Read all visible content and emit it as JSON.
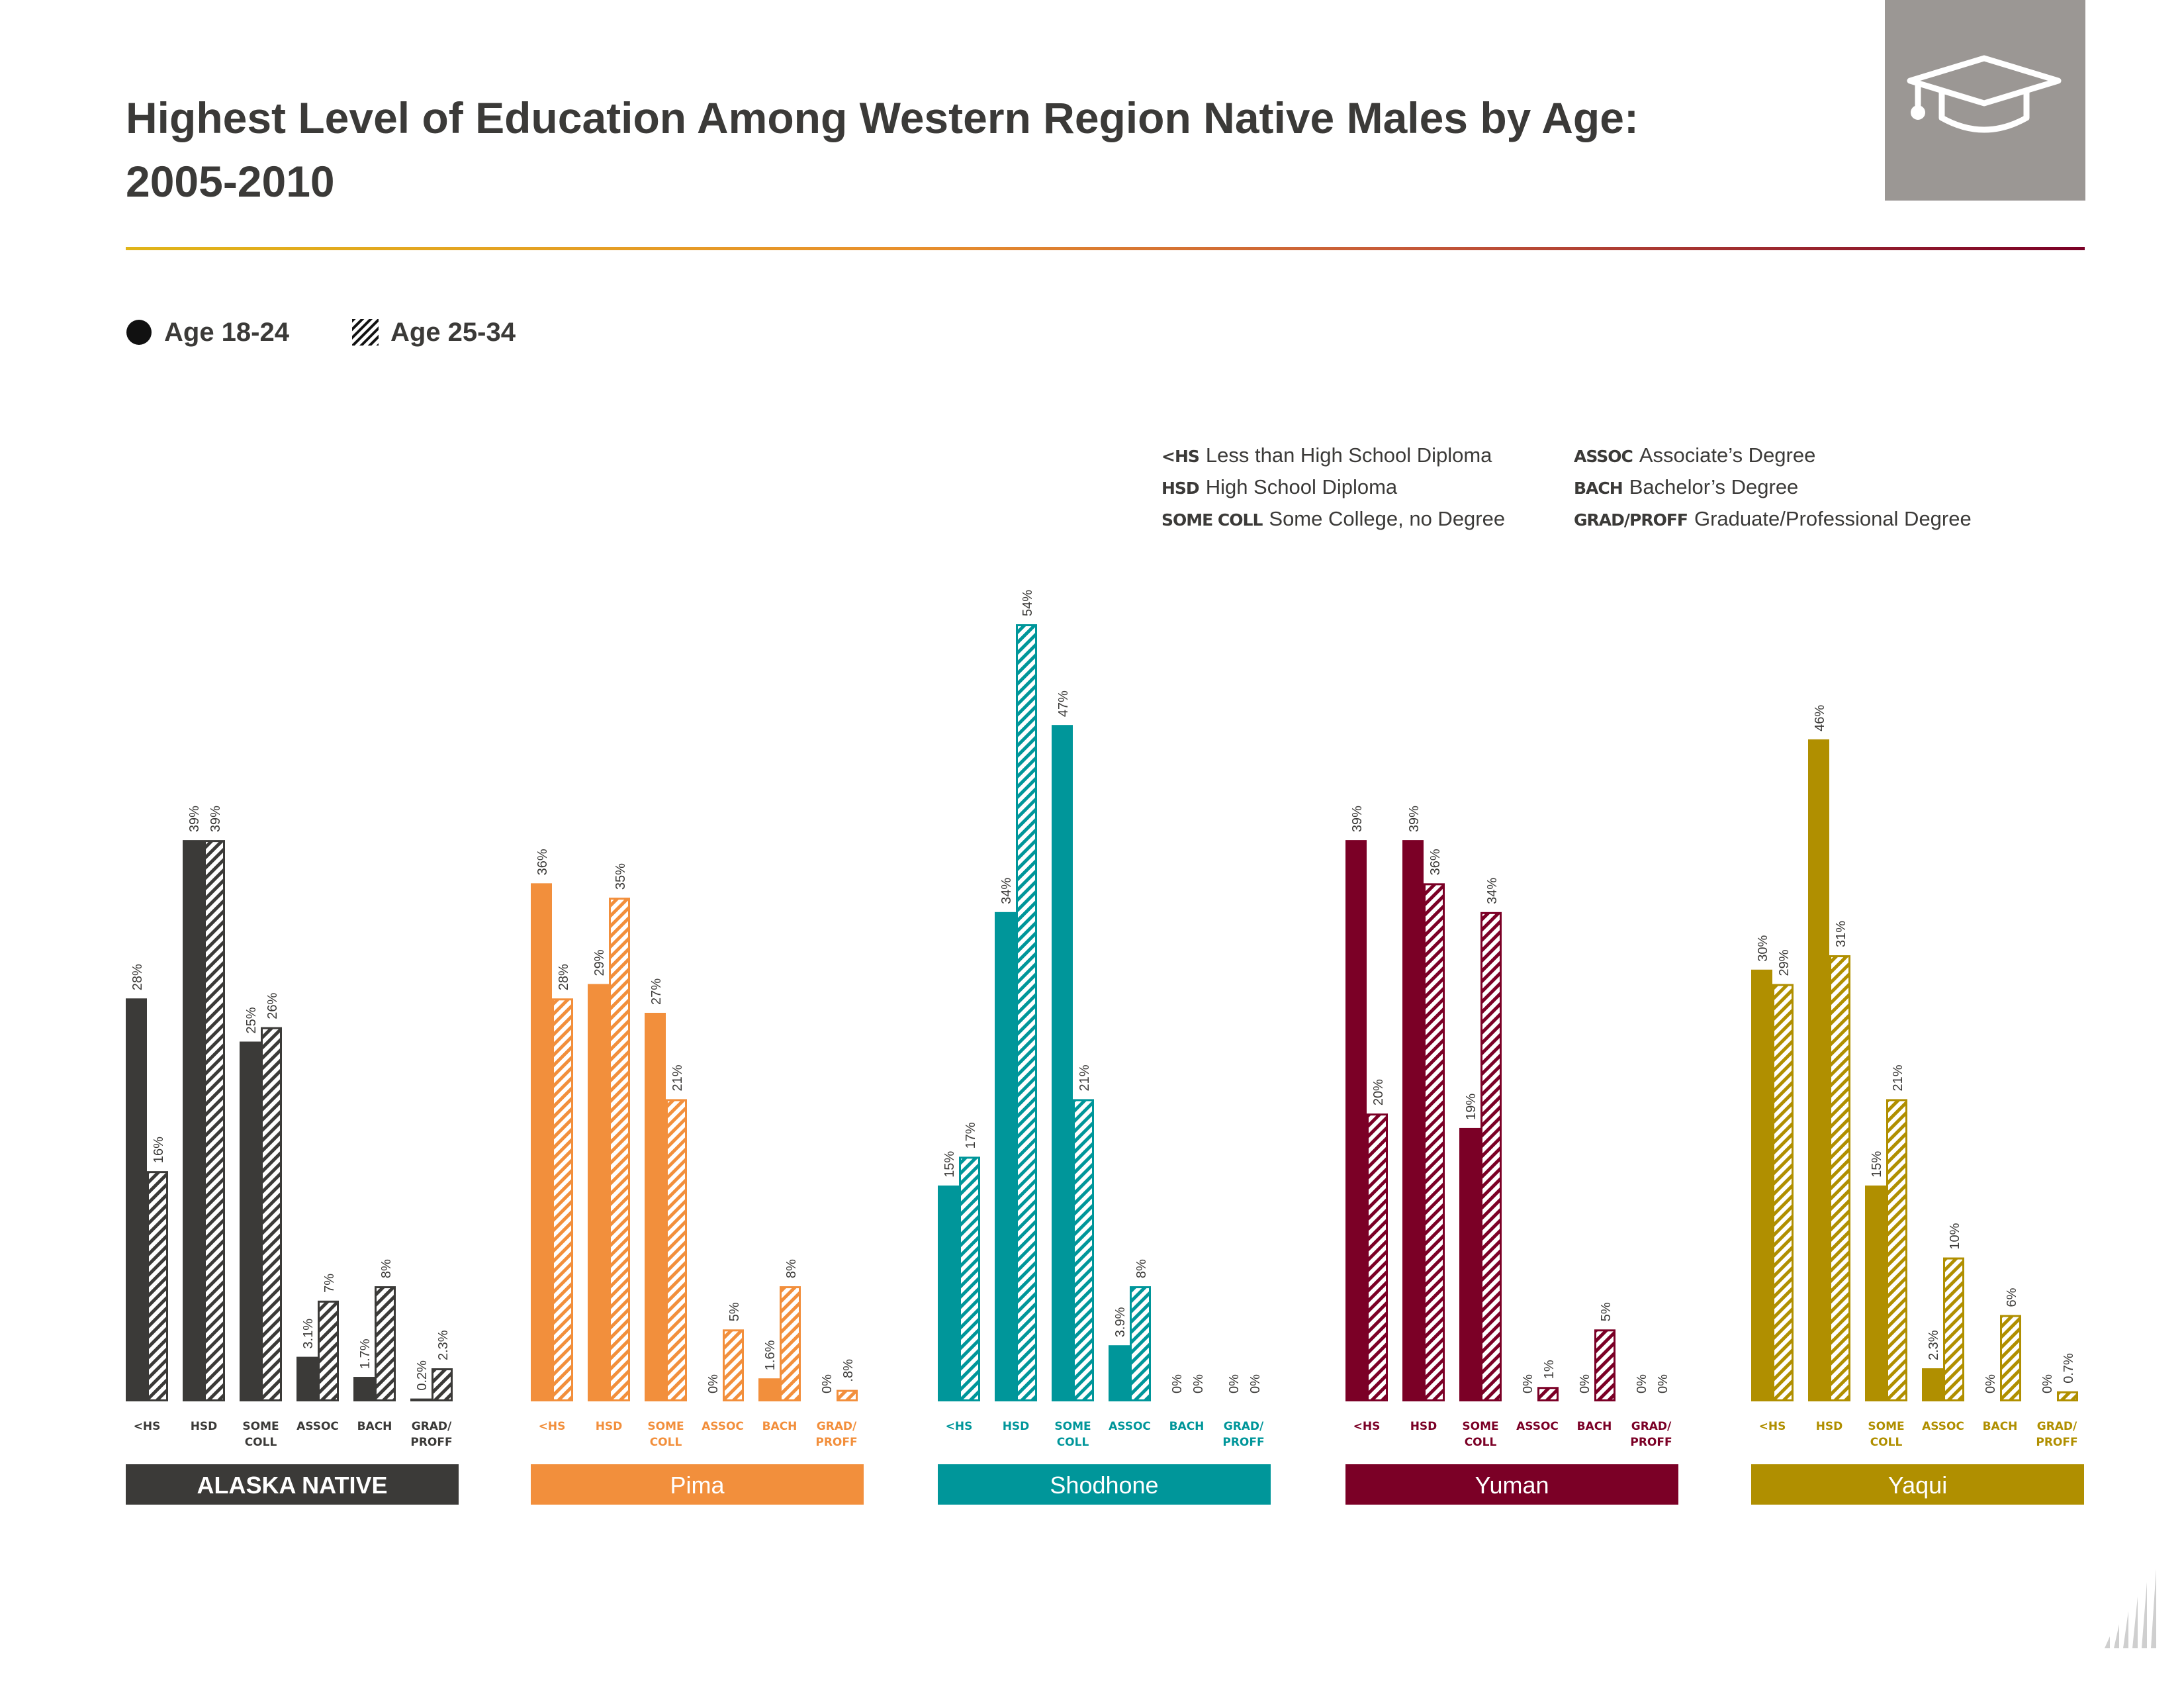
{
  "title_line1": "Highest Level of Education Among Western Region Native Males by Age:",
  "title_line2": "2005-2010",
  "header_icon": "graduation-cap-icon",
  "legend": [
    {
      "label": "Age 18-24",
      "style": "solid"
    },
    {
      "label": "Age 25-34",
      "style": "hatched"
    }
  ],
  "abbreviations": [
    {
      "abbr": "<HS",
      "meaning": "Less than High School Diploma"
    },
    {
      "abbr": "HSD",
      "meaning": "High School Diploma"
    },
    {
      "abbr": "SOME COLL",
      "meaning": "Some College, no Degree"
    },
    {
      "abbr": "ASSOC",
      "meaning": "Associate’s Degree"
    },
    {
      "abbr": "BACH",
      "meaning": "Bachelor’s Degree"
    },
    {
      "abbr": "GRAD/PROFF",
      "meaning": "Graduate/Professional Degree"
    }
  ],
  "chart_data": {
    "type": "bar",
    "categories": [
      "<HS",
      "HSD",
      "SOME COLL",
      "ASSOC",
      "BACH",
      "GRAD/ PROFF"
    ],
    "ylim": [
      0,
      54
    ],
    "groups": [
      {
        "name": "ALASKA NATIVE",
        "color": "#3b3a38",
        "series": [
          {
            "name": "Age 18-24",
            "values": [
              28,
              39,
              25,
              3.1,
              1.7,
              0.2
            ],
            "labels": [
              "28%",
              "39%",
              "25%",
              "3.1%",
              "1.7%",
              "0.2%"
            ]
          },
          {
            "name": "Age 25-34",
            "values": [
              16,
              39,
              26,
              7,
              8,
              2.3
            ],
            "labels": [
              "16%",
              "39%",
              "26%",
              "7%",
              "8%",
              "2.3%"
            ]
          }
        ]
      },
      {
        "name": "Pima",
        "color": "#f28f3c",
        "series": [
          {
            "name": "Age 18-24",
            "values": [
              36,
              29,
              27,
              0,
              1.6,
              0
            ],
            "labels": [
              "36%",
              "29%",
              "27%",
              "0%",
              "1.6%",
              "0%"
            ]
          },
          {
            "name": "Age 25-34",
            "values": [
              28,
              35,
              21,
              5,
              8,
              0.8
            ],
            "labels": [
              "28%",
              "35%",
              "21%",
              "5%",
              "8%",
              ".8%"
            ]
          }
        ]
      },
      {
        "name": "Shodhone",
        "color": "#00969a",
        "series": [
          {
            "name": "Age 18-24",
            "values": [
              15,
              34,
              47,
              3.9,
              0,
              0
            ],
            "labels": [
              "15%",
              "34%",
              "47%",
              "3.9%",
              "0%",
              "0%"
            ]
          },
          {
            "name": "Age 25-34",
            "values": [
              17,
              54,
              21,
              8,
              0,
              0
            ],
            "labels": [
              "17%",
              "54%",
              "21%",
              "8%",
              "0%",
              "0%"
            ]
          }
        ]
      },
      {
        "name": "Yuman",
        "color": "#7b0026",
        "series": [
          {
            "name": "Age 18-24",
            "values": [
              39,
              39,
              19,
              0,
              0,
              0
            ],
            "labels": [
              "39%",
              "39%",
              "19%",
              "0%",
              "0%",
              "0%"
            ]
          },
          {
            "name": "Age 25-34",
            "values": [
              20,
              36,
              34,
              1,
              5,
              0
            ],
            "labels": [
              "20%",
              "36%",
              "34%",
              "1%",
              "5%",
              "0%"
            ]
          }
        ]
      },
      {
        "name": "Yaqui",
        "color": "#b08f00",
        "series": [
          {
            "name": "Age 18-24",
            "values": [
              30,
              46,
              15,
              2.3,
              0,
              0
            ],
            "labels": [
              "30%",
              "46%",
              "15%",
              "2.3%",
              "0%",
              "0%"
            ]
          },
          {
            "name": "Age 25-34",
            "values": [
              29,
              31,
              21,
              10,
              6,
              0.7
            ],
            "labels": [
              "29%",
              "31%",
              "21%",
              "10%",
              "6%",
              "0.7%"
            ]
          }
        ]
      }
    ]
  }
}
